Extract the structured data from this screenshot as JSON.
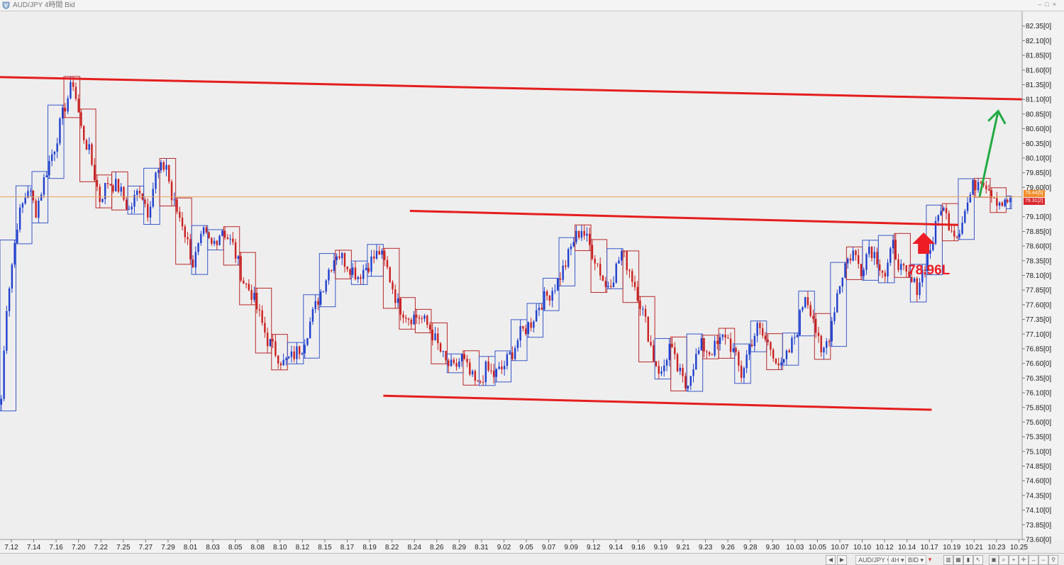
{
  "window": {
    "title": "AUD/JPY 4時間 Bid"
  },
  "toolbar": {
    "symbol": "AUD/JPY",
    "timeframe": "4H",
    "price_side": "BID"
  },
  "price_tags": {
    "tag_a": "79.44[5]",
    "tag_b": "79.31[2]"
  },
  "annotation": {
    "level_label": "78.96L",
    "arrow_color": "#ee1c24",
    "projection_color": "#22aa44",
    "trendline_color": "#e51d1d"
  },
  "chart_data": {
    "type": "candlestick",
    "ylim": [
      73.6,
      82.6
    ],
    "y_ticks": [
      {
        "v": 82.35,
        "label": "82.35[0]"
      },
      {
        "v": 82.1,
        "label": "82.10[0]"
      },
      {
        "v": 81.85,
        "label": "81.85[0]"
      },
      {
        "v": 81.6,
        "label": "81.60[0]"
      },
      {
        "v": 81.35,
        "label": "81.35[0]"
      },
      {
        "v": 81.1,
        "label": "81.10[0]"
      },
      {
        "v": 80.85,
        "label": "80.85[0]"
      },
      {
        "v": 80.6,
        "label": "80.60[0]"
      },
      {
        "v": 80.35,
        "label": "80.35[0]"
      },
      {
        "v": 80.1,
        "label": "80.10[0]"
      },
      {
        "v": 79.85,
        "label": "79.85[0]"
      },
      {
        "v": 79.6,
        "label": "79.60[0]"
      },
      {
        "v": 79.1,
        "label": "79.10[0]"
      },
      {
        "v": 78.85,
        "label": "78.85[0]"
      },
      {
        "v": 78.6,
        "label": "78.60[0]"
      },
      {
        "v": 78.35,
        "label": "78.35[0]"
      },
      {
        "v": 78.1,
        "label": "78.10[0]"
      },
      {
        "v": 77.85,
        "label": "77.85[0]"
      },
      {
        "v": 77.6,
        "label": "77.60[0]"
      },
      {
        "v": 77.35,
        "label": "77.35[0]"
      },
      {
        "v": 77.1,
        "label": "77.10[0]"
      },
      {
        "v": 76.85,
        "label": "76.85[0]"
      },
      {
        "v": 76.6,
        "label": "76.60[0]"
      },
      {
        "v": 76.35,
        "label": "76.35[0]"
      },
      {
        "v": 76.1,
        "label": "76.10[0]"
      },
      {
        "v": 75.85,
        "label": "75.85[0]"
      },
      {
        "v": 75.6,
        "label": "75.60[0]"
      },
      {
        "v": 75.35,
        "label": "75.35[0]"
      },
      {
        "v": 75.1,
        "label": "75.10[0]"
      },
      {
        "v": 74.85,
        "label": "74.85[0]"
      },
      {
        "v": 74.6,
        "label": "74.60[0]"
      },
      {
        "v": 74.35,
        "label": "74.35[0]"
      },
      {
        "v": 74.1,
        "label": "74.10[0]"
      },
      {
        "v": 73.85,
        "label": "73.85[0]"
      },
      {
        "v": 73.6,
        "label": "73.60[0]"
      }
    ],
    "x_labels": [
      "7.12",
      "7.14",
      "7.16",
      "7.20",
      "7.22",
      "7.25",
      "7.27",
      "7.29",
      "8.01",
      "8.03",
      "8.05",
      "8.08",
      "8.10",
      "8.12",
      "8.15",
      "8.17",
      "8.19",
      "8.22",
      "8.24",
      "8.26",
      "8.29",
      "8.31",
      "9.02",
      "9.05",
      "9.07",
      "9.09",
      "9.12",
      "9.14",
      "9.16",
      "9.19",
      "9.21",
      "9.23",
      "9.26",
      "9.28",
      "9.30",
      "10.03",
      "10.05",
      "10.07",
      "10.10",
      "10.12",
      "10.14",
      "10.17",
      "10.19",
      "10.21",
      "10.23",
      "10.25"
    ],
    "current_price": 79.44,
    "path": [
      [
        0,
        76.0
      ],
      [
        2,
        77.6
      ],
      [
        6,
        79.0
      ],
      [
        10,
        79.6
      ],
      [
        13,
        79.2
      ],
      [
        17,
        79.9
      ],
      [
        20,
        80.3
      ],
      [
        24,
        81.0
      ],
      [
        27,
        81.4
      ],
      [
        30,
        80.6
      ],
      [
        33,
        80.2
      ],
      [
        37,
        79.4
      ],
      [
        40,
        79.7
      ],
      [
        44,
        79.6
      ],
      [
        48,
        79.2
      ],
      [
        52,
        79.6
      ],
      [
        55,
        79.2
      ],
      [
        58,
        79.8
      ],
      [
        62,
        80.0
      ],
      [
        64,
        79.4
      ],
      [
        68,
        79.0
      ],
      [
        72,
        78.3
      ],
      [
        76,
        78.8
      ],
      [
        79,
        78.6
      ],
      [
        83,
        78.9
      ],
      [
        87,
        78.6
      ],
      [
        91,
        78.0
      ],
      [
        94,
        77.8
      ],
      [
        97,
        77.4
      ],
      [
        100,
        77.0
      ],
      [
        103,
        76.8
      ],
      [
        106,
        76.6
      ],
      [
        109,
        76.7
      ],
      [
        113,
        76.9
      ],
      [
        116,
        77.3
      ],
      [
        119,
        77.7
      ],
      [
        123,
        78.2
      ],
      [
        126,
        78.5
      ],
      [
        130,
        78.3
      ],
      [
        134,
        78.1
      ],
      [
        138,
        78.3
      ],
      [
        142,
        78.5
      ],
      [
        145,
        78.2
      ],
      [
        149,
        77.6
      ],
      [
        153,
        77.4
      ],
      [
        157,
        77.4
      ],
      [
        161,
        77.2
      ],
      [
        164,
        76.9
      ],
      [
        167,
        76.6
      ],
      [
        170,
        76.5
      ],
      [
        173,
        76.7
      ],
      [
        176,
        76.4
      ],
      [
        179,
        76.2
      ],
      [
        182,
        76.5
      ],
      [
        185,
        76.4
      ],
      [
        188,
        76.5
      ],
      [
        192,
        76.8
      ],
      [
        195,
        77.1
      ],
      [
        199,
        77.3
      ],
      [
        202,
        77.6
      ],
      [
        206,
        77.8
      ],
      [
        209,
        78.0
      ],
      [
        212,
        78.3
      ],
      [
        215,
        78.7
      ],
      [
        218,
        78.9
      ],
      [
        221,
        78.6
      ],
      [
        224,
        78.3
      ],
      [
        227,
        77.9
      ],
      [
        230,
        78.1
      ],
      [
        233,
        78.5
      ],
      [
        236,
        78.2
      ],
      [
        239,
        77.8
      ],
      [
        242,
        77.3
      ],
      [
        245,
        76.7
      ],
      [
        248,
        76.4
      ],
      [
        251,
        76.9
      ],
      [
        254,
        76.5
      ],
      [
        257,
        76.2
      ],
      [
        260,
        76.6
      ],
      [
        263,
        76.9
      ],
      [
        266,
        76.8
      ],
      [
        269,
        76.9
      ],
      [
        272,
        77.1
      ],
      [
        275,
        76.8
      ],
      [
        278,
        76.4
      ],
      [
        281,
        76.9
      ],
      [
        284,
        77.2
      ],
      [
        287,
        77.0
      ],
      [
        290,
        76.8
      ],
      [
        293,
        76.5
      ],
      [
        296,
        76.8
      ],
      [
        299,
        77.2
      ],
      [
        302,
        77.8
      ],
      [
        305,
        77.4
      ],
      [
        308,
        76.7
      ],
      [
        311,
        77.1
      ],
      [
        314,
        77.8
      ],
      [
        317,
        78.3
      ],
      [
        320,
        78.5
      ],
      [
        323,
        78.2
      ],
      [
        326,
        78.6
      ],
      [
        329,
        78.4
      ],
      [
        332,
        78.1
      ],
      [
        335,
        78.6
      ],
      [
        338,
        78.2
      ],
      [
        341,
        78.0
      ],
      [
        344,
        77.9
      ],
      [
        347,
        78.3
      ],
      [
        350,
        78.7
      ],
      [
        353,
        79.3
      ],
      [
        356,
        79.0
      ],
      [
        359,
        78.8
      ],
      [
        362,
        79.2
      ],
      [
        365,
        79.6
      ],
      [
        368,
        79.8
      ],
      [
        371,
        79.6
      ],
      [
        374,
        79.4
      ],
      [
        377,
        79.3
      ],
      [
        379,
        79.42
      ]
    ],
    "trendlines": [
      {
        "x1": 0,
        "y1": 81.48,
        "x2": 384,
        "y2": 81.1
      },
      {
        "x1": 154,
        "y1": 79.2,
        "x2": 360,
        "y2": 78.96
      },
      {
        "x1": 144,
        "y1": 76.05,
        "x2": 350,
        "y2": 75.81
      }
    ],
    "projection": {
      "from": [
        368,
        79.44
      ],
      "to": [
        375,
        80.9
      ]
    },
    "arrow_at": [
      347,
      78.3
    ]
  }
}
